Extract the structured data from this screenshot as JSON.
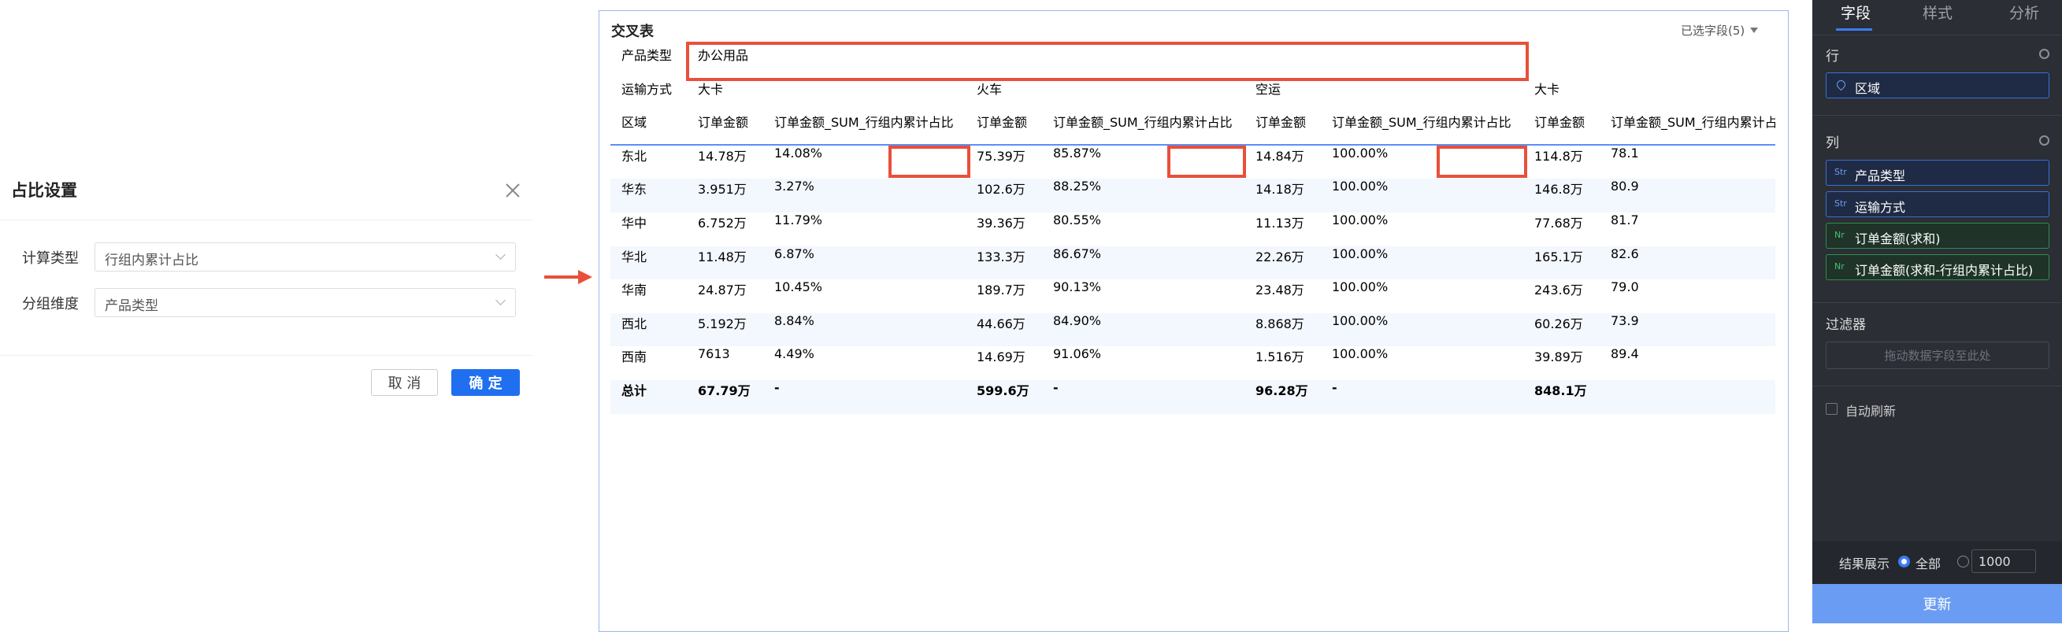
{
  "dialog": {
    "title": "占比设置",
    "fields": [
      {
        "label": "计算类型",
        "value": "行组内累计占比"
      },
      {
        "label": "分组维度",
        "value": "产品类型"
      }
    ],
    "buttons": {
      "cancel": "取 消",
      "ok": "确 定"
    }
  },
  "panel": {
    "title": "交叉表",
    "selected": "已选字段(5)",
    "table": {
      "product_label": "产品类型",
      "product_value": "办公用品",
      "ship_label": "运输方式",
      "groups": [
        "大卡",
        "火车",
        "空运",
        "大卡"
      ],
      "header": [
        "区域",
        "订单金额",
        "订单金额_SUM_行组内累计占比",
        "订单金额",
        "订单金额_SUM_行组内累计占比",
        "订单金额",
        "订单金额_SUM_行组内累计占比",
        "订单金额",
        "订单金额_SUM_行组内累计占"
      ],
      "rows": [
        [
          "东北",
          "14.78万",
          "14.08%",
          "75.39万",
          "85.87%",
          "14.84万",
          "100.00%",
          "114.8万",
          "78.1"
        ],
        [
          "华东",
          "3.951万",
          "3.27%",
          "102.6万",
          "88.25%",
          "14.18万",
          "100.00%",
          "146.8万",
          "80.9"
        ],
        [
          "华中",
          "6.752万",
          "11.79%",
          "39.36万",
          "80.55%",
          "11.13万",
          "100.00%",
          "77.68万",
          "81.7"
        ],
        [
          "华北",
          "11.48万",
          "6.87%",
          "133.3万",
          "86.67%",
          "22.26万",
          "100.00%",
          "165.1万",
          "82.6"
        ],
        [
          "华南",
          "24.87万",
          "10.45%",
          "189.7万",
          "90.13%",
          "23.48万",
          "100.00%",
          "243.6万",
          "79.0"
        ],
        [
          "西北",
          "5.192万",
          "8.84%",
          "44.66万",
          "84.90%",
          "8.868万",
          "100.00%",
          "60.26万",
          "73.9"
        ],
        [
          "西南",
          "7613",
          "4.49%",
          "14.69万",
          "91.06%",
          "1.516万",
          "100.00%",
          "39.89万",
          "89.4"
        ],
        [
          "总计",
          "67.79万",
          "-",
          "599.6万",
          "-",
          "96.28万",
          "-",
          "848.1万"
        ]
      ]
    }
  },
  "sidebar": {
    "tabs": [
      "字段",
      "样式",
      "分析"
    ],
    "rows_title": "行",
    "row_fields": [
      "区域"
    ],
    "columns_title": "列",
    "column_fields": [
      {
        "tag": "Str",
        "name": "产品类型"
      },
      {
        "tag": "Str",
        "name": "运输方式"
      },
      {
        "tag": "Nr",
        "name": "订单金额(求和)"
      },
      {
        "tag": "Nr",
        "name": "订单金额(求和-行组内累计占比)"
      }
    ],
    "filter_title": "过滤器",
    "filter_placeholder": "拖动数据字段至此处",
    "auto_refresh": "自动刷新",
    "result_label": "结果展示",
    "result_option": "全部",
    "result_limit": 1000,
    "update": "更新"
  }
}
